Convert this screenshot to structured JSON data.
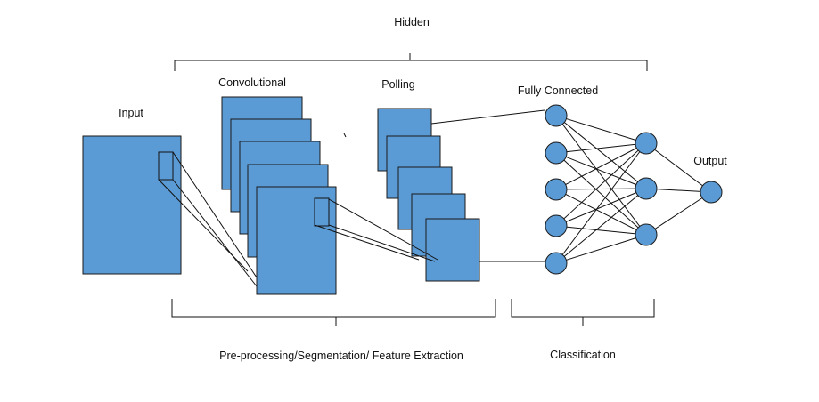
{
  "labels": {
    "hidden": "Hidden",
    "input": "Input",
    "convolutional": "Convolutional",
    "polling": "Polling",
    "fully_connected": "Fully Connected",
    "output": "Output",
    "preprocessing": "Pre-processing/Segmentation/ Feature Extraction",
    "classification": "Classification"
  },
  "colors": {
    "fill": "#5b9bd5",
    "stroke": "#1a1a1a",
    "line": "#111111"
  }
}
